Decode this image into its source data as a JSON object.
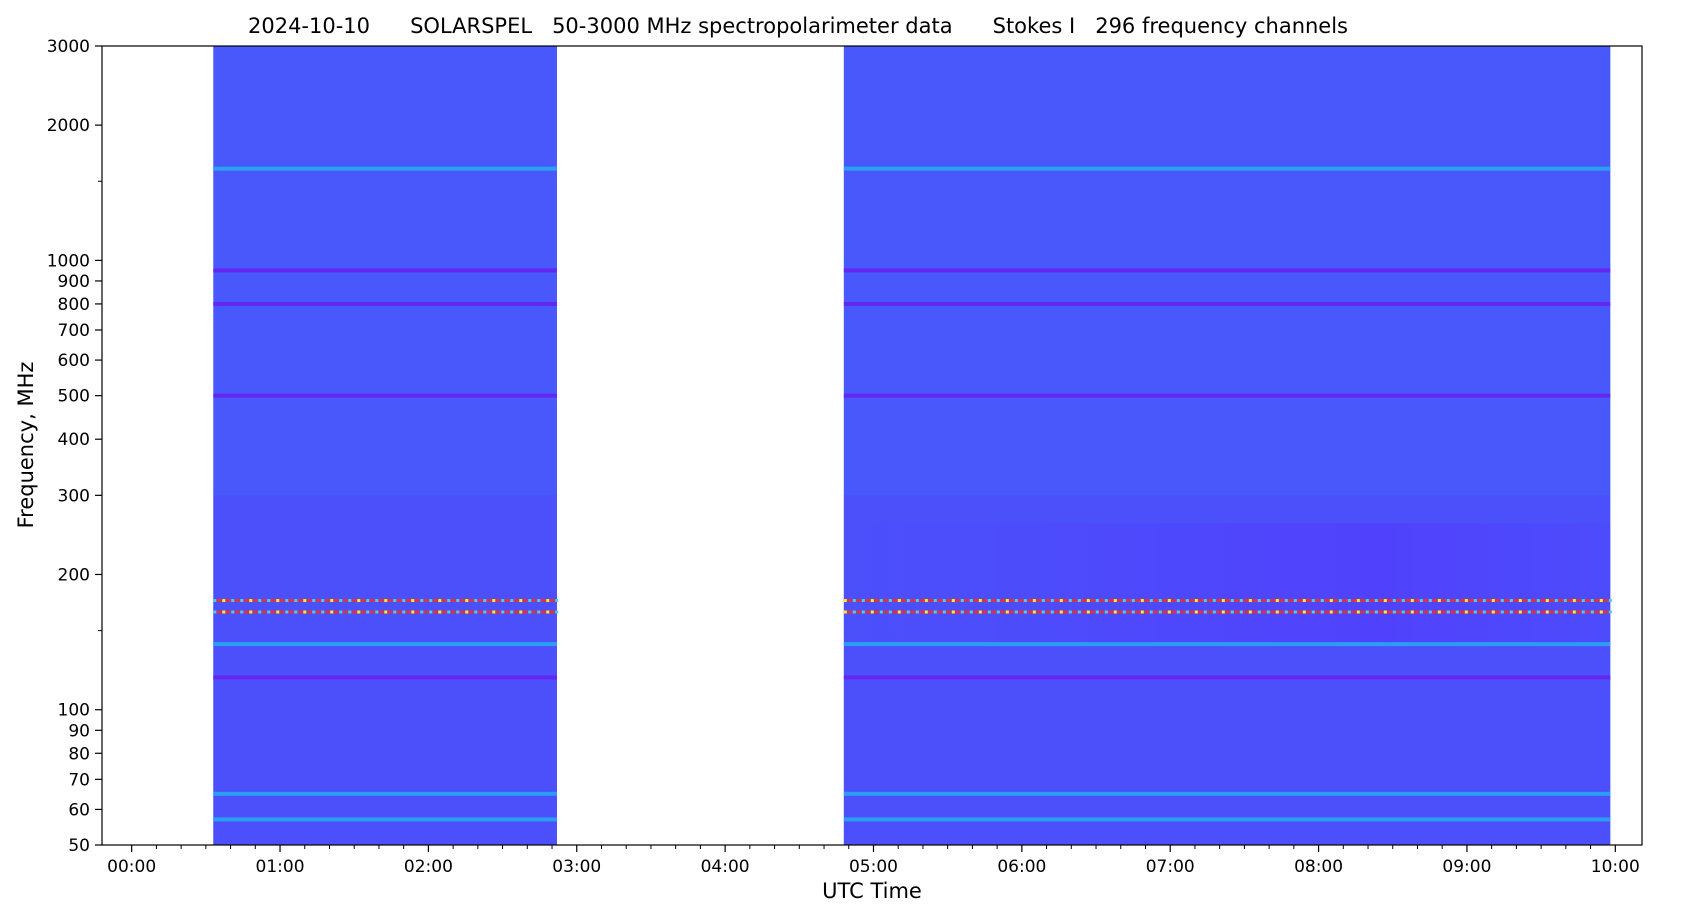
{
  "chart_data": {
    "type": "heatmap",
    "title": "2024-10-10      SOLARSPEL   50-3000 MHz spectropolarimeter data      Stokes I   296 frequency channels",
    "xlabel": "UTC Time",
    "ylabel": "Frequency, MHz",
    "x_range": [
      "00:00",
      "10:00"
    ],
    "xlim_hours": [
      -0.2,
      10.18
    ],
    "ylim": [
      50,
      3000
    ],
    "y_scale": "log",
    "x_ticks": [
      "00:00",
      "01:00",
      "02:00",
      "03:00",
      "04:00",
      "05:00",
      "06:00",
      "07:00",
      "08:00",
      "09:00",
      "10:00"
    ],
    "y_ticks": [
      "50",
      "60",
      "70",
      "80",
      "90",
      "100",
      "200",
      "300",
      "400",
      "500",
      "600",
      "700",
      "800",
      "900",
      "1000",
      "2000",
      "3000"
    ],
    "colormap": "rainbow",
    "background_color": "#4858fb",
    "observation_blocks": [
      {
        "start": "00:33",
        "end": "02:52"
      },
      {
        "start": "04:48",
        "end": "09:58"
      }
    ],
    "notable_bands_mhz": [
      {
        "freq": 1600,
        "level": "elevated"
      },
      {
        "freq": 950,
        "level": "depressed"
      },
      {
        "freq": 800,
        "level": "depressed"
      },
      {
        "freq": 500,
        "level": "depressed"
      },
      {
        "freq": 175,
        "level": "interference"
      },
      {
        "freq": 165,
        "level": "interference"
      },
      {
        "freq": 140,
        "level": "elevated"
      },
      {
        "freq": 118,
        "level": "depressed"
      },
      {
        "freq": 65,
        "level": "elevated"
      },
      {
        "freq": 57,
        "level": "elevated"
      }
    ]
  }
}
